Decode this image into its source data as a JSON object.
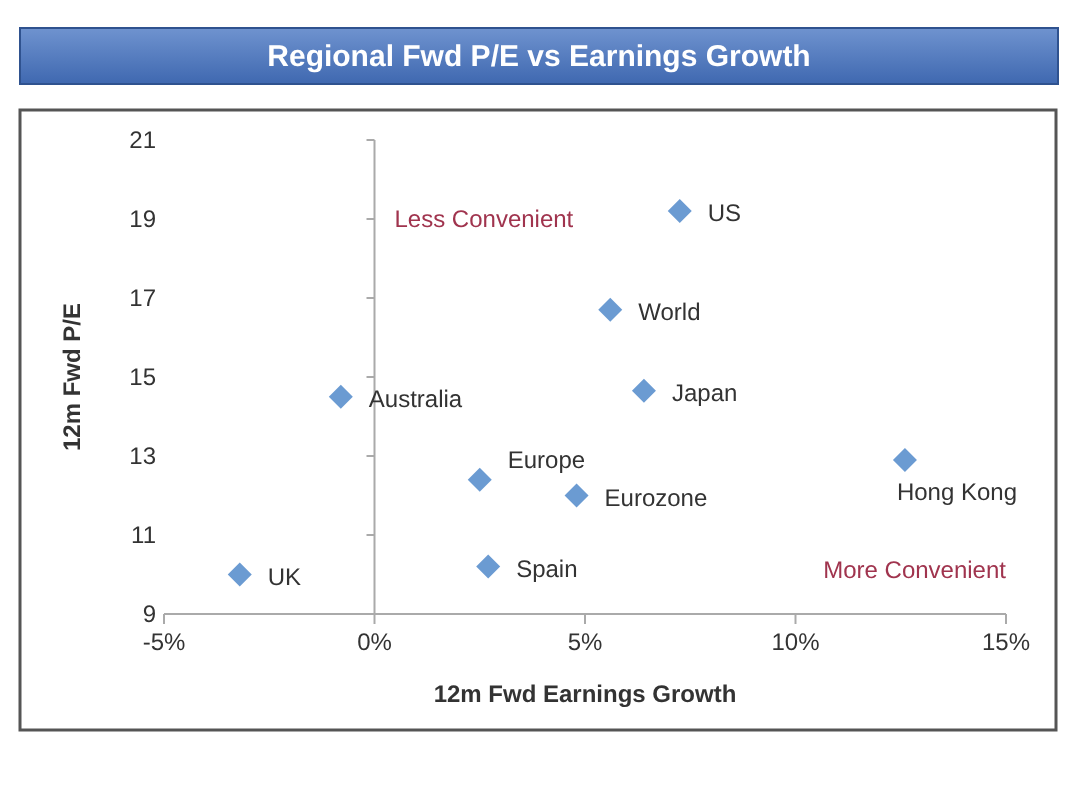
{
  "chart_data": {
    "type": "scatter",
    "title": "Regional Fwd P/E vs Earnings Growth",
    "xlabel": "12m Fwd Earnings Growth",
    "ylabel": "12m Fwd P/E",
    "annotations": [
      "Less Convenient",
      "More Convenient"
    ],
    "xlim": [
      -5,
      15
    ],
    "xticks": [
      {
        "value": -5,
        "label": "-5%"
      },
      {
        "value": 0,
        "label": "0%"
      },
      {
        "value": 5,
        "label": "5%"
      },
      {
        "value": 10,
        "label": "10%"
      },
      {
        "value": 15,
        "label": "15%"
      }
    ],
    "ylim": [
      9,
      21
    ],
    "yticks": [
      9,
      11,
      13,
      15,
      17,
      19,
      21
    ],
    "legend": false,
    "marker": "diamond",
    "series": [
      {
        "name": "US",
        "color": "#6b9bd2",
        "x": [
          7.25
        ],
        "values": [
          19.2
        ]
      },
      {
        "name": "World",
        "color": "#6b9bd2",
        "x": [
          5.6
        ],
        "values": [
          16.7
        ]
      },
      {
        "name": "Japan",
        "color": "#6b9bd2",
        "x": [
          6.4
        ],
        "values": [
          14.65
        ]
      },
      {
        "name": "Australia",
        "color": "#6b9bd2",
        "x": [
          -0.8
        ],
        "values": [
          14.5
        ]
      },
      {
        "name": "Hong Kong",
        "color": "#6b9bd2",
        "x": [
          12.6
        ],
        "values": [
          12.9
        ]
      },
      {
        "name": "Europe",
        "color": "#6b9bd2",
        "x": [
          2.5
        ],
        "values": [
          12.4
        ]
      },
      {
        "name": "Eurozone",
        "color": "#6b9bd2",
        "x": [
          4.8
        ],
        "values": [
          12.0
        ]
      },
      {
        "name": "Spain",
        "color": "#6b9bd2",
        "x": [
          2.7
        ],
        "values": [
          10.2
        ]
      },
      {
        "name": "UK",
        "color": "#6b9bd2",
        "x": [
          -3.2
        ],
        "values": [
          10.0
        ]
      }
    ]
  }
}
